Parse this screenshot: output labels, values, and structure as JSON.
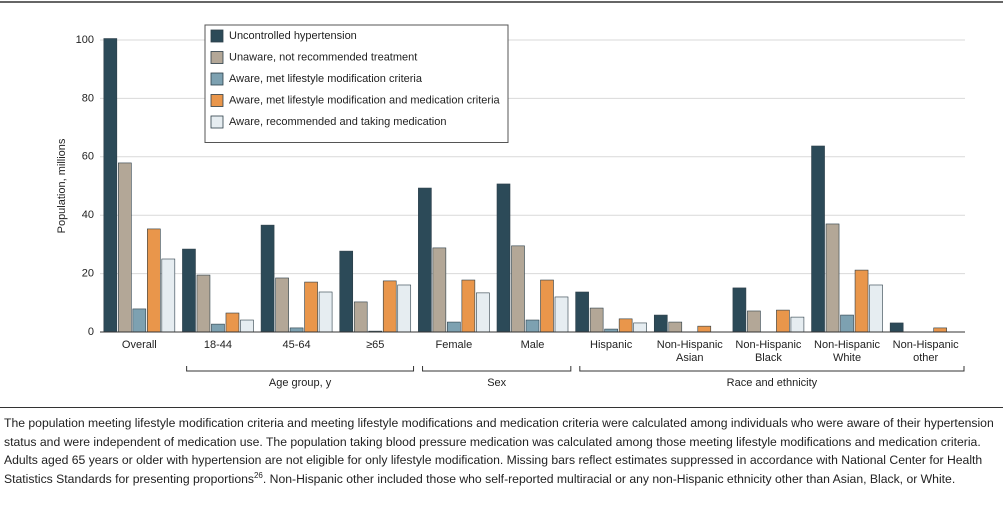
{
  "chart_data": {
    "type": "bar",
    "ylabel": "Population, millions",
    "categories": [
      "Overall",
      "18-44",
      "45-64",
      "≥65",
      "Female",
      "Male",
      "Hispanic",
      "Non-Hispanic Asian",
      "Non-Hispanic Black",
      "Non-Hispanic White",
      "Non-Hispanic other"
    ],
    "groups": [
      {
        "label": "Age group, y",
        "first": 1,
        "last": 3
      },
      {
        "label": "Sex",
        "first": 4,
        "last": 5
      },
      {
        "label": "Race and ethnicity",
        "first": 6,
        "last": 10
      }
    ],
    "series": [
      {
        "name": "Uncontrolled hypertension",
        "color": "#2c4a58",
        "values": [
          100.5,
          28.4,
          36.6,
          27.7,
          49.3,
          50.7,
          13.7,
          5.8,
          15.1,
          63.7,
          3.1
        ]
      },
      {
        "name": "Unaware, not recommended treatment",
        "color": "#b3a797",
        "values": [
          57.9,
          19.5,
          18.5,
          10.3,
          28.8,
          29.5,
          8.2,
          3.4,
          7.2,
          37.0,
          null
        ]
      },
      {
        "name": "Aware, met lifestyle modification criteria",
        "color": "#7da1b1",
        "values": [
          7.9,
          2.7,
          1.4,
          0.3,
          3.4,
          4.1,
          1.0,
          null,
          null,
          5.8,
          null
        ]
      },
      {
        "name": "Aware, met lifestyle modification and medication criteria",
        "color": "#e9964b",
        "values": [
          35.3,
          6.5,
          17.1,
          17.5,
          17.8,
          17.8,
          4.5,
          2.0,
          7.5,
          21.2,
          1.4
        ]
      },
      {
        "name": "Aware, recommended and taking medication",
        "color": "#e6edf1",
        "values": [
          25.0,
          4.1,
          13.7,
          16.1,
          13.4,
          12.0,
          3.1,
          null,
          5.1,
          16.1,
          null
        ]
      }
    ],
    "ylim": [
      0,
      100
    ],
    "yticks": [
      0,
      20,
      40,
      60,
      80,
      100
    ],
    "grid": true
  },
  "caption": [
    "The population meeting lifestyle modification criteria and meeting lifestyle modifications and medication criteria were calculated among individuals who were aware of their hypertension status and were independent of medication use. The population taking blood pressure medication was calculated among those meeting lifestyle modifications and medication criteria. Adults aged 65 years or older with hypertension are not eligible for only lifestyle modification. Missing bars reflect estimates suppressed in accordance with National Center for Health Statistics Standards for presenting proportions",
    "26",
    ". Non-Hispanic other included those who self-reported multiracial or any non-Hispanic ethnicity other than Asian, Black, or White."
  ]
}
